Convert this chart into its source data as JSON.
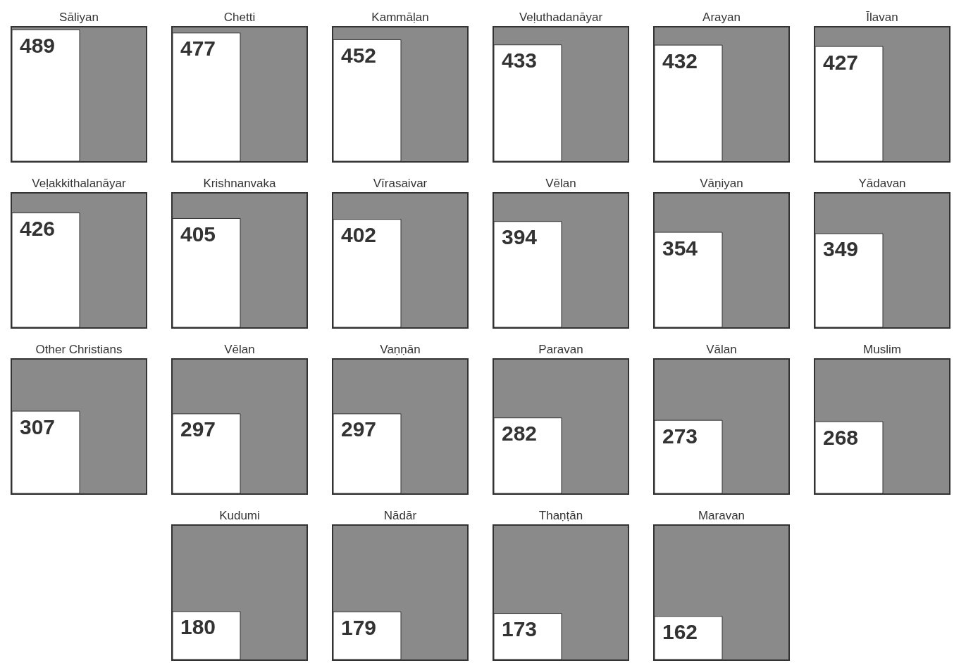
{
  "chart_data": {
    "type": "other",
    "categories": [
      "Sāliyan",
      "Chetti",
      "Kammāḷan",
      "Veḷuthadanāyar",
      "Arayan",
      "Īlavan",
      "Veḷakkithalanāyar",
      "Krishnanvaka",
      "Vīrasaivar",
      "Vēlan",
      "Vāṇiyan",
      "Yādavan",
      "Other Christians",
      "Vēlan",
      "Vaṇṇān",
      "Paravan",
      "Vālan",
      "Muslim",
      "Kudumi",
      "Nādār",
      "Thaṇṭān",
      "Maravan"
    ],
    "values": [
      489,
      477,
      452,
      433,
      432,
      427,
      426,
      405,
      402,
      394,
      354,
      349,
      307,
      297,
      297,
      282,
      273,
      268,
      180,
      179,
      173,
      162
    ],
    "data_labels": true
  }
}
